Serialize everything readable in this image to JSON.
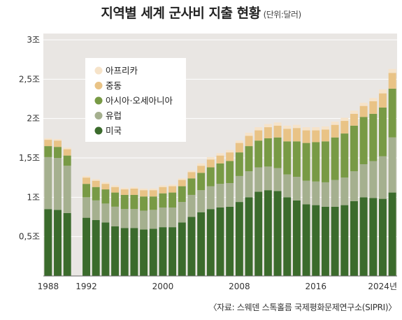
{
  "header": {
    "title": "지역별 세계 군사비 지출 현황",
    "unit": "(단위:달러)"
  },
  "source": "〈자료: 스웨덴 스톡홀름 국제평화문제연구소(SIPRI)〉",
  "chart_data": {
    "type": "bar",
    "stacked": true,
    "title": "지역별 세계 군사비 지출 현황",
    "unit": "(단위:달러)",
    "xlabel": "",
    "ylabel": "",
    "ylim": [
      0,
      3
    ],
    "yticks": [
      "0,5조",
      "1조",
      "1,5조",
      "2조",
      "2,5조",
      "3조"
    ],
    "ytick_values": [
      0.5,
      1,
      1.5,
      2,
      2.5,
      3
    ],
    "xtick_labels": [
      "1988",
      "1992",
      "2000",
      "2008",
      "2016",
      "2024년"
    ],
    "xtick_years": [
      1988,
      1992,
      2000,
      2008,
      2016,
      2024
    ],
    "legend_position": "top-left",
    "grid": true,
    "categories": [
      1988,
      1989,
      1990,
      1991,
      1992,
      1993,
      1994,
      1995,
      1996,
      1997,
      1998,
      1999,
      2000,
      2001,
      2002,
      2003,
      2004,
      2005,
      2006,
      2007,
      2008,
      2009,
      2010,
      2011,
      2012,
      2013,
      2014,
      2015,
      2016,
      2017,
      2018,
      2019,
      2020,
      2021,
      2022,
      2023,
      2024
    ],
    "series": [
      {
        "name": "미국",
        "color": "#3b6b2c",
        "values": [
          0.85,
          0.84,
          0.8,
          null,
          0.74,
          0.71,
          0.68,
          0.63,
          0.61,
          0.61,
          0.59,
          0.6,
          0.62,
          0.62,
          0.68,
          0.75,
          0.81,
          0.85,
          0.87,
          0.88,
          0.94,
          1.0,
          1.07,
          1.09,
          1.08,
          1.0,
          0.96,
          0.91,
          0.9,
          0.88,
          0.88,
          0.9,
          0.95,
          1.0,
          0.99,
          0.98,
          1.06
        ]
      },
      {
        "name": "유럽",
        "color": "#a5b08f",
        "values": [
          0.66,
          0.66,
          0.6,
          null,
          0.26,
          0.25,
          0.24,
          0.25,
          0.24,
          0.24,
          0.24,
          0.24,
          0.25,
          0.25,
          0.26,
          0.28,
          0.28,
          0.29,
          0.3,
          0.3,
          0.33,
          0.33,
          0.31,
          0.3,
          0.29,
          0.29,
          0.3,
          0.3,
          0.3,
          0.31,
          0.34,
          0.35,
          0.38,
          0.42,
          0.47,
          0.54,
          0.7
        ]
      },
      {
        "name": "아시아·오세아니아",
        "color": "#789a45",
        "values": [
          0.14,
          0.14,
          0.13,
          null,
          0.17,
          0.17,
          0.18,
          0.18,
          0.18,
          0.18,
          0.18,
          0.17,
          0.18,
          0.19,
          0.2,
          0.21,
          0.22,
          0.24,
          0.26,
          0.28,
          0.3,
          0.32,
          0.34,
          0.36,
          0.39,
          0.42,
          0.45,
          0.48,
          0.5,
          0.52,
          0.54,
          0.56,
          0.58,
          0.6,
          0.6,
          0.62,
          0.62
        ]
      },
      {
        "name": "중동",
        "color": "#e9c386",
        "values": [
          0.08,
          0.08,
          0.08,
          null,
          0.08,
          0.08,
          0.07,
          0.07,
          0.07,
          0.08,
          0.08,
          0.08,
          0.08,
          0.08,
          0.08,
          0.08,
          0.09,
          0.1,
          0.1,
          0.11,
          0.12,
          0.13,
          0.13,
          0.14,
          0.15,
          0.16,
          0.17,
          0.16,
          0.15,
          0.15,
          0.16,
          0.16,
          0.15,
          0.14,
          0.16,
          0.18,
          0.2
        ]
      },
      {
        "name": "아프리카",
        "color": "#f6e3c9",
        "values": [
          0.02,
          0.02,
          0.02,
          null,
          0.02,
          0.02,
          0.02,
          0.02,
          0.02,
          0.02,
          0.02,
          0.02,
          0.02,
          0.02,
          0.02,
          0.02,
          0.03,
          0.03,
          0.03,
          0.03,
          0.03,
          0.04,
          0.04,
          0.04,
          0.04,
          0.04,
          0.04,
          0.04,
          0.04,
          0.04,
          0.04,
          0.04,
          0.04,
          0.04,
          0.04,
          0.05,
          0.05
        ]
      }
    ]
  }
}
